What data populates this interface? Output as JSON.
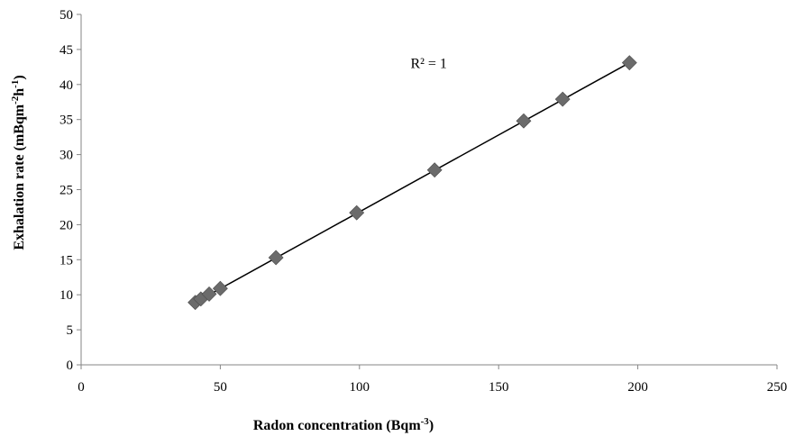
{
  "chart_data": {
    "type": "scatter",
    "title": "",
    "xlabel": "Radon concentration (Bqm",
    "xlabel_sup": "-3",
    "xlabel_end": ")",
    "ylabel": "Exhalation rate (mBqm",
    "ylabel_sup1": "-2",
    "ylabel_mid": "h",
    "ylabel_sup2": "-1",
    "ylabel_end": ")",
    "xlim": [
      0,
      250
    ],
    "ylim": [
      0,
      50
    ],
    "x_ticks": [
      "0",
      "50",
      "100",
      "150",
      "200",
      "250"
    ],
    "y_ticks": [
      "0",
      "5",
      "10",
      "15",
      "20",
      "25",
      "30",
      "35",
      "40",
      "45",
      "50"
    ],
    "grid": false,
    "legend": "none",
    "marker": "diamond",
    "marker_color": "#6b6b6b",
    "trendline_color": "#000000",
    "annotation": "R² = 1",
    "series": [
      {
        "x": [
          41,
          43,
          46,
          50,
          70,
          99,
          127,
          159,
          173,
          197
        ],
        "y": [
          8.9,
          9.4,
          10.1,
          10.9,
          15.3,
          21.7,
          27.8,
          34.8,
          37.9,
          43.1
        ]
      }
    ],
    "trendline": {
      "x": [
        41,
        197
      ],
      "y": [
        8.9,
        43.1
      ]
    },
    "annotation_pos": {
      "x": 130,
      "y": 43
    }
  }
}
